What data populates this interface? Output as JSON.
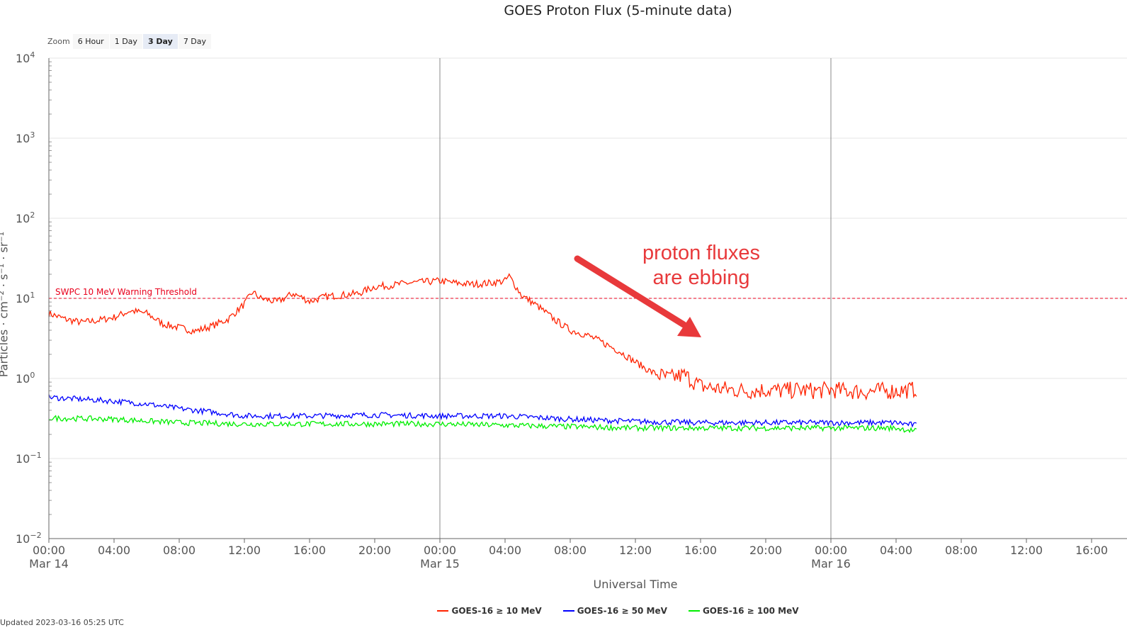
{
  "chart_data": {
    "type": "line",
    "title": "GOES Proton Flux (5-minute data)",
    "xlabel": "Universal Time",
    "ylabel": "Particles · cm⁻² · s⁻¹ · sr⁻¹",
    "y_scale": "log",
    "ylim": [
      0.01,
      10000
    ],
    "y_ticks": [
      {
        "base": "10",
        "exp": "4"
      },
      {
        "base": "10",
        "exp": "3"
      },
      {
        "base": "10",
        "exp": "2"
      },
      {
        "base": "10",
        "exp": "1"
      },
      {
        "base": "10",
        "exp": "0"
      },
      {
        "base": "10",
        "exp": "−1"
      },
      {
        "base": "10",
        "exp": "−2"
      }
    ],
    "xlim": [
      "2023-03-14 00:00",
      "2023-03-16 16:00"
    ],
    "x_ticks": [
      {
        "time": "00:00",
        "date": "Mar 14"
      },
      {
        "time": "04:00",
        "date": ""
      },
      {
        "time": "08:00",
        "date": ""
      },
      {
        "time": "12:00",
        "date": ""
      },
      {
        "time": "16:00",
        "date": ""
      },
      {
        "time": "20:00",
        "date": ""
      },
      {
        "time": "00:00",
        "date": "Mar 15"
      },
      {
        "time": "04:00",
        "date": ""
      },
      {
        "time": "08:00",
        "date": ""
      },
      {
        "time": "12:00",
        "date": ""
      },
      {
        "time": "16:00",
        "date": ""
      },
      {
        "time": "20:00",
        "date": ""
      },
      {
        "time": "00:00",
        "date": "Mar 16"
      },
      {
        "time": "04:00",
        "date": ""
      },
      {
        "time": "08:00",
        "date": ""
      },
      {
        "time": "12:00",
        "date": ""
      },
      {
        "time": "16:00",
        "date": ""
      }
    ],
    "day_dividers": [
      "2023-03-15 00:00",
      "2023-03-16 00:00"
    ],
    "threshold": {
      "label": "SWPC 10 MeV Warning Threshold",
      "value": 10,
      "color": "#e8001c"
    },
    "grid": true,
    "legend_position": "bottom-center",
    "data_end": "2023-03-16 05:15",
    "series": [
      {
        "name": "GOES-16 ≥ 10 MeV",
        "color": "#ff2200",
        "points": [
          [
            "2023-03-14 00:00",
            6.5
          ],
          [
            "2023-03-14 01:00",
            5.5
          ],
          [
            "2023-03-14 02:00",
            5.0
          ],
          [
            "2023-03-14 03:00",
            5.3
          ],
          [
            "2023-03-14 04:00",
            5.8
          ],
          [
            "2023-03-14 05:00",
            7.0
          ],
          [
            "2023-03-14 06:00",
            6.5
          ],
          [
            "2023-03-14 07:00",
            4.8
          ],
          [
            "2023-03-14 08:00",
            4.3
          ],
          [
            "2023-03-14 09:00",
            3.9
          ],
          [
            "2023-03-14 10:00",
            4.5
          ],
          [
            "2023-03-14 11:00",
            5.5
          ],
          [
            "2023-03-14 12:00",
            8.5
          ],
          [
            "2023-03-14 12:30",
            12.0
          ],
          [
            "2023-03-14 13:00",
            10.0
          ],
          [
            "2023-03-14 14:00",
            9.0
          ],
          [
            "2023-03-14 15:00",
            11.5
          ],
          [
            "2023-03-14 16:00",
            9.2
          ],
          [
            "2023-03-14 17:00",
            10.5
          ],
          [
            "2023-03-14 18:00",
            11.0
          ],
          [
            "2023-03-14 19:00",
            11.5
          ],
          [
            "2023-03-14 20:00",
            14.0
          ],
          [
            "2023-03-14 21:00",
            14.5
          ],
          [
            "2023-03-14 22:00",
            15.5
          ],
          [
            "2023-03-14 23:00",
            16.0
          ],
          [
            "2023-03-15 00:00",
            16.5
          ],
          [
            "2023-03-15 01:00",
            15.5
          ],
          [
            "2023-03-15 02:00",
            15.0
          ],
          [
            "2023-03-15 03:00",
            15.5
          ],
          [
            "2023-03-15 04:00",
            16.5
          ],
          [
            "2023-03-15 04:15",
            19.0
          ],
          [
            "2023-03-15 05:00",
            11.0
          ],
          [
            "2023-03-15 06:00",
            8.0
          ],
          [
            "2023-03-15 07:00",
            5.5
          ],
          [
            "2023-03-15 08:00",
            4.0
          ],
          [
            "2023-03-15 09:00",
            3.5
          ],
          [
            "2023-03-15 10:00",
            2.8
          ],
          [
            "2023-03-15 11:00",
            2.2
          ],
          [
            "2023-03-15 12:00",
            1.6
          ],
          [
            "2023-03-15 13:00",
            1.2
          ],
          [
            "2023-03-15 14:00",
            1.0
          ],
          [
            "2023-03-15 15:00",
            1.1
          ],
          [
            "2023-03-15 16:00",
            0.8
          ],
          [
            "2023-03-15 17:00",
            0.75
          ],
          [
            "2023-03-15 18:00",
            0.72
          ],
          [
            "2023-03-15 19:00",
            0.7
          ],
          [
            "2023-03-15 20:00",
            0.72
          ],
          [
            "2023-03-15 21:00",
            0.7
          ],
          [
            "2023-03-15 22:00",
            0.72
          ],
          [
            "2023-03-15 23:00",
            0.7
          ],
          [
            "2023-03-16 00:00",
            0.72
          ],
          [
            "2023-03-16 01:00",
            0.7
          ],
          [
            "2023-03-16 02:00",
            0.68
          ],
          [
            "2023-03-16 03:00",
            0.7
          ],
          [
            "2023-03-16 04:00",
            0.7
          ],
          [
            "2023-03-16 05:00",
            0.72
          ],
          [
            "2023-03-16 05:15",
            0.75
          ]
        ]
      },
      {
        "name": "GOES-16 ≥ 50 MeV",
        "color": "#0000ff",
        "points": [
          [
            "2023-03-14 00:00",
            0.58
          ],
          [
            "2023-03-14 02:00",
            0.55
          ],
          [
            "2023-03-14 04:00",
            0.52
          ],
          [
            "2023-03-14 06:00",
            0.48
          ],
          [
            "2023-03-14 08:00",
            0.42
          ],
          [
            "2023-03-14 10:00",
            0.38
          ],
          [
            "2023-03-14 12:00",
            0.34
          ],
          [
            "2023-03-14 16:00",
            0.34
          ],
          [
            "2023-03-14 20:00",
            0.35
          ],
          [
            "2023-03-15 00:00",
            0.34
          ],
          [
            "2023-03-15 04:00",
            0.34
          ],
          [
            "2023-03-15 08:00",
            0.31
          ],
          [
            "2023-03-15 12:00",
            0.29
          ],
          [
            "2023-03-15 16:00",
            0.28
          ],
          [
            "2023-03-15 20:00",
            0.28
          ],
          [
            "2023-03-16 00:00",
            0.28
          ],
          [
            "2023-03-16 04:00",
            0.28
          ],
          [
            "2023-03-16 05:15",
            0.26
          ]
        ]
      },
      {
        "name": "GOES-16 ≥ 100 MeV",
        "color": "#00ee00",
        "points": [
          [
            "2023-03-14 00:00",
            0.32
          ],
          [
            "2023-03-14 04:00",
            0.31
          ],
          [
            "2023-03-14 08:00",
            0.28
          ],
          [
            "2023-03-14 12:00",
            0.27
          ],
          [
            "2023-03-14 16:00",
            0.27
          ],
          [
            "2023-03-14 20:00",
            0.27
          ],
          [
            "2023-03-15 00:00",
            0.27
          ],
          [
            "2023-03-15 04:00",
            0.26
          ],
          [
            "2023-03-15 08:00",
            0.25
          ],
          [
            "2023-03-15 12:00",
            0.24
          ],
          [
            "2023-03-15 16:00",
            0.24
          ],
          [
            "2023-03-15 20:00",
            0.24
          ],
          [
            "2023-03-16 00:00",
            0.24
          ],
          [
            "2023-03-16 04:00",
            0.24
          ],
          [
            "2023-03-16 05:15",
            0.22
          ]
        ]
      }
    ]
  },
  "zoom": {
    "label": "Zoom",
    "options": [
      "6 Hour",
      "1 Day",
      "3 Day",
      "7 Day"
    ],
    "selected": "3 Day"
  },
  "annotation": {
    "line1": "proton fluxes",
    "line2": "are ebbing",
    "color": "#e8393b"
  },
  "credit": "Updated 2023-03-16 05:25 UTC"
}
